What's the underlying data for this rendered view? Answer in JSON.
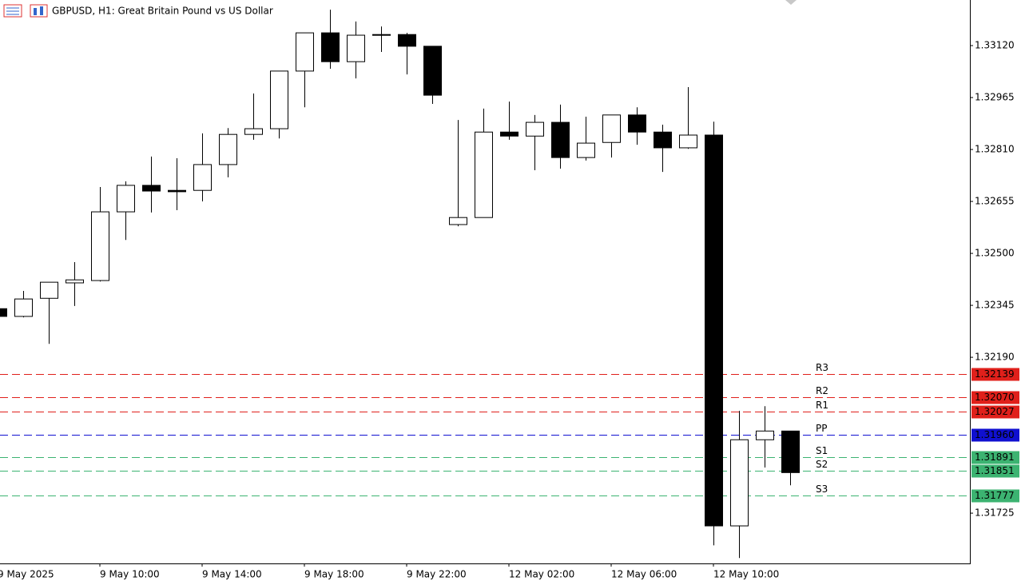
{
  "chart_data": {
    "type": "candlestick",
    "title": "GBPUSD, H1:  Great Britain Pound vs US Dollar",
    "categories": [
      "9 May 2025",
      null,
      null,
      null,
      "9 May 10:00",
      null,
      null,
      null,
      "9 May 14:00",
      null,
      null,
      null,
      "9 May 18:00",
      null,
      null,
      null,
      "9 May 22:00",
      null,
      null,
      null,
      "12 May 02:00",
      null,
      null,
      null,
      "12 May 06:00",
      null,
      null,
      null,
      "12 May 10:00",
      null,
      null,
      null
    ],
    "open": [
      1.32335,
      1.32312,
      1.32366,
      1.32412,
      1.32419,
      1.32624,
      1.32703,
      1.32688,
      1.32688,
      1.32765,
      1.32855,
      1.32872,
      1.33044,
      1.33158,
      1.33072,
      1.33151,
      1.33153,
      1.33118,
      1.32586,
      1.32607,
      1.32862,
      1.3285,
      1.32891,
      1.32786,
      1.32831,
      1.32913,
      1.32862,
      1.32815,
      1.32853,
      1.31687,
      1.31944,
      1.3197
    ],
    "high": [
      1.32335,
      1.32388,
      1.32414,
      1.32474,
      1.32698,
      1.32715,
      1.32789,
      1.32784,
      1.32858,
      1.32874,
      1.32977,
      1.33044,
      1.33158,
      1.33227,
      1.33192,
      1.33177,
      1.33158,
      1.33118,
      1.32898,
      1.32932,
      1.32953,
      1.32913,
      1.32944,
      1.32908,
      1.32913,
      1.32936,
      1.32884,
      1.32996,
      1.32893,
      1.3203,
      1.32044,
      1.3197
    ],
    "low": [
      1.32312,
      1.32309,
      1.3223,
      1.32343,
      1.32416,
      1.3254,
      1.32622,
      1.32629,
      1.32655,
      1.32727,
      1.32839,
      1.32843,
      1.32936,
      1.33051,
      1.33022,
      1.33101,
      1.33034,
      1.32946,
      1.32581,
      1.32607,
      1.32839,
      1.32748,
      1.32753,
      1.32777,
      1.32786,
      1.32824,
      1.32743,
      1.32812,
      1.31629,
      1.31591,
      1.31861,
      1.31808
    ],
    "close": [
      1.32312,
      1.32364,
      1.32414,
      1.32421,
      1.32624,
      1.32703,
      1.32686,
      1.32684,
      1.32765,
      1.32855,
      1.32872,
      1.33044,
      1.33158,
      1.33072,
      1.33151,
      1.33153,
      1.33118,
      1.32972,
      1.32607,
      1.32862,
      1.3285,
      1.32891,
      1.32786,
      1.32829,
      1.32913,
      1.32862,
      1.32815,
      1.32853,
      1.31687,
      1.31944,
      1.3197,
      1.31846
    ],
    "up_color": "#ffffff",
    "down_color": "#000000",
    "ylim": [
      1.31575,
      1.33256
    ],
    "yticks": [
      {
        "value": 1.3312,
        "label": "1.33120"
      },
      {
        "value": 1.32965,
        "label": "1.32965"
      },
      {
        "value": 1.3281,
        "label": "1.32810"
      },
      {
        "value": 1.32655,
        "label": "1.32655"
      },
      {
        "value": 1.325,
        "label": "1.32500"
      },
      {
        "value": 1.32345,
        "label": "1.32345"
      },
      {
        "value": 1.3219,
        "label": "1.32190"
      },
      {
        "value": 1.31725,
        "label": "1.31725"
      }
    ],
    "levels": [
      {
        "name": "R3",
        "value": 1.32139,
        "value_label": "1.32139",
        "color": "#e0201b"
      },
      {
        "name": "R2",
        "value": 1.3207,
        "value_label": "1.32070",
        "color": "#e0201b"
      },
      {
        "name": "R1",
        "value": 1.32027,
        "value_label": "1.32027",
        "color": "#e0201b"
      },
      {
        "name": "PP",
        "value": 1.3196,
        "value_label": "1.31960",
        "color": "#1010d0"
      },
      {
        "name": "S1",
        "value": 1.31891,
        "value_label": "1.31891",
        "color": "#3cb371"
      },
      {
        "name": "S2",
        "value": 1.31851,
        "value_label": "1.31851",
        "color": "#3cb371"
      },
      {
        "name": "S3",
        "value": 1.31777,
        "value_label": "1.31777",
        "color": "#3cb371"
      }
    ]
  }
}
